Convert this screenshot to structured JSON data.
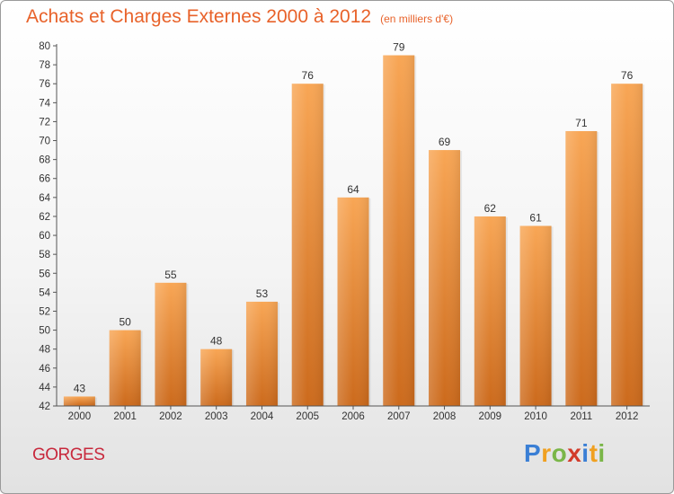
{
  "header": {
    "title": "Achats et Charges Externes 2000 à 2012",
    "subtitle": "(en milliers d'€)"
  },
  "footer": {
    "city": "GORGES",
    "logo": {
      "letters": [
        "P",
        "r",
        "o",
        "x",
        "i",
        "t",
        "i"
      ],
      "colors": [
        "#3a7fd5",
        "#f0a020",
        "#7ab648",
        "#d23b2a",
        "#3a7fd5",
        "#f0a020",
        "#7ab648"
      ]
    }
  },
  "colors": {
    "bar_light": "#f8a655",
    "bar_dark": "#cc6a1c",
    "axis": "#555555",
    "grid": "#d8d8d8"
  },
  "chart_data": {
    "type": "bar",
    "title": "Achats et Charges Externes 2000 à 2012",
    "subtitle": "(en milliers d'€)",
    "categories": [
      "2000",
      "2001",
      "2002",
      "2003",
      "2004",
      "2005",
      "2006",
      "2007",
      "2008",
      "2009",
      "2010",
      "2011",
      "2012"
    ],
    "values": [
      43,
      50,
      55,
      48,
      53,
      76,
      64,
      79,
      69,
      62,
      61,
      71,
      76
    ],
    "ylim": [
      42,
      80
    ],
    "ytick_step": 2,
    "data_labels": true,
    "grid": false,
    "legend": "none"
  }
}
